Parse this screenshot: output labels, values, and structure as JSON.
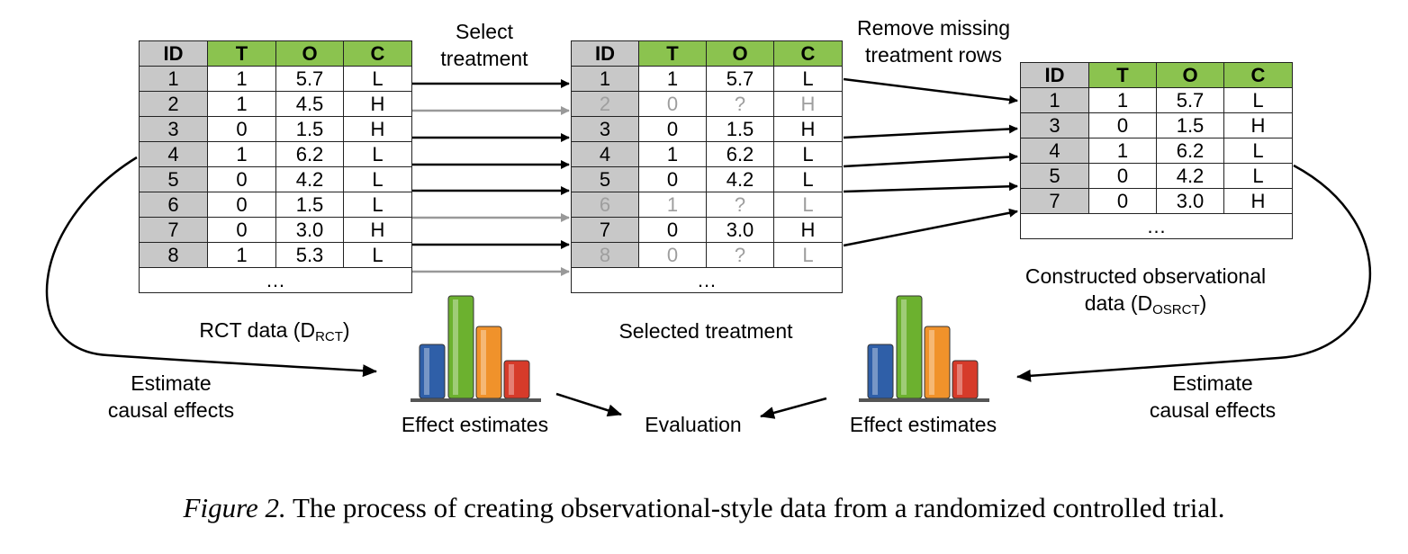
{
  "columns": [
    "ID",
    "T",
    "O",
    "C"
  ],
  "rct_table": {
    "rows": [
      [
        "1",
        "1",
        "5.7",
        "L"
      ],
      [
        "2",
        "1",
        "4.5",
        "H"
      ],
      [
        "3",
        "0",
        "1.5",
        "H"
      ],
      [
        "4",
        "1",
        "6.2",
        "L"
      ],
      [
        "5",
        "0",
        "4.2",
        "L"
      ],
      [
        "6",
        "0",
        "1.5",
        "L"
      ],
      [
        "7",
        "0",
        "3.0",
        "H"
      ],
      [
        "8",
        "1",
        "5.3",
        "L"
      ]
    ],
    "ellipsis": "…",
    "label": "RCT data (D",
    "label_sub": "RCT",
    "label_end": ")"
  },
  "selected_table": {
    "rows": [
      [
        "1",
        "1",
        "5.7",
        "L"
      ],
      [
        "2",
        "0",
        "?",
        "H"
      ],
      [
        "3",
        "0",
        "1.5",
        "H"
      ],
      [
        "4",
        "1",
        "6.2",
        "L"
      ],
      [
        "5",
        "0",
        "4.2",
        "L"
      ],
      [
        "6",
        "1",
        "?",
        "L"
      ],
      [
        "7",
        "0",
        "3.0",
        "H"
      ],
      [
        "8",
        "0",
        "?",
        "L"
      ]
    ],
    "dimmed_rows": [
      1,
      5,
      7
    ],
    "ellipsis": "…",
    "label": "Selected treatment"
  },
  "observational_table": {
    "rows": [
      [
        "1",
        "1",
        "5.7",
        "L"
      ],
      [
        "3",
        "0",
        "1.5",
        "H"
      ],
      [
        "4",
        "1",
        "6.2",
        "L"
      ],
      [
        "5",
        "0",
        "4.2",
        "L"
      ],
      [
        "7",
        "0",
        "3.0",
        "H"
      ]
    ],
    "ellipsis": "…",
    "label_line1": "Constructed observational",
    "label_line2": "data (D",
    "label_sub": "OSRCT",
    "label_end": ")"
  },
  "step_labels": {
    "select_line1": "Select",
    "select_line2": "treatment",
    "remove_line1": "Remove missing",
    "remove_line2": "treatment rows",
    "estimate_left_line1": "Estimate",
    "estimate_left_line2": "causal effects",
    "estimate_right_line1": "Estimate",
    "estimate_right_line2": "causal effects",
    "effect_left": "Effect estimates",
    "effect_right": "Effect estimates",
    "evaluation": "Evaluation"
  },
  "bar_icon_colors": [
    "#2f5fa8",
    "#6cb12f",
    "#f0922b",
    "#d63b2a"
  ],
  "colors": {
    "id_column": "#c8c8c8",
    "header": "#8bc34f",
    "dimmed": "#9e9e9e",
    "arrow_dim": "#999999"
  },
  "caption": {
    "figure": "Figure 2.",
    "text": " The process of creating observational-style data from a randomized controlled trial."
  }
}
